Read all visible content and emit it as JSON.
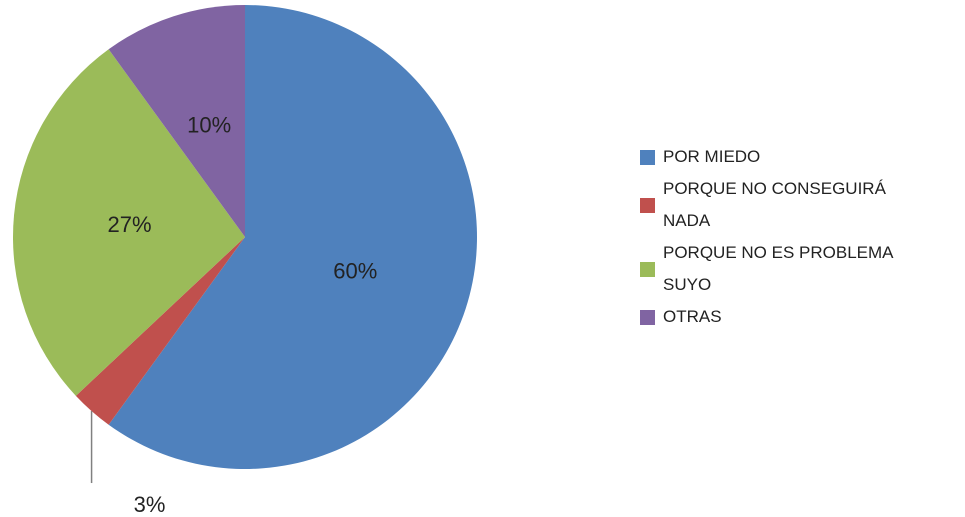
{
  "chart_data": {
    "type": "pie",
    "categories": [
      "POR MIEDO",
      "PORQUE NO CONSEGUIRÁ NADA",
      "PORQUE NO ES PROBLEMA SUYO",
      "OTRAS"
    ],
    "values": [
      60,
      3,
      27,
      10
    ],
    "value_labels": [
      "60%",
      "3%",
      "27%",
      "10%"
    ],
    "colors": [
      "#4f81bd",
      "#c0504d",
      "#9bbb59",
      "#8064a2"
    ],
    "legend": "right"
  }
}
